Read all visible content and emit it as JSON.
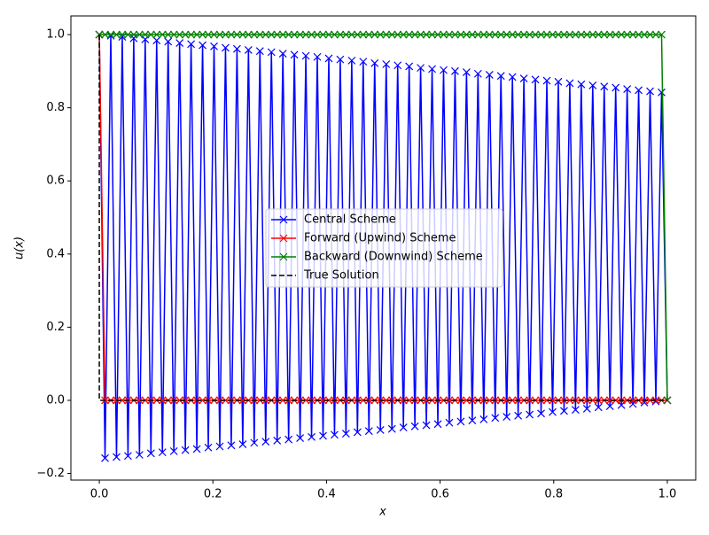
{
  "chart_data": {
    "type": "line",
    "xlabel": "x",
    "ylabel": "u(x)",
    "xlim": [
      -0.05,
      1.05
    ],
    "ylim": [
      -0.218,
      1.051
    ],
    "xticks": [
      {
        "value": 0,
        "label": "0.0"
      },
      0.2,
      0.4,
      0.6,
      0.8,
      {
        "value": 1,
        "label": "1.0"
      }
    ],
    "yticks": [
      {
        "value": -0.2,
        "label": "−0.2"
      },
      {
        "value": 0,
        "label": "0.0"
      },
      0.2,
      0.4,
      0.6,
      0.8,
      {
        "value": 1,
        "label": "1.0"
      }
    ],
    "legend": "center",
    "x": [
      0,
      0.0101,
      0.0202,
      0.0303,
      0.0404,
      0.0505,
      0.0606,
      0.0707,
      0.0808,
      0.0909,
      0.101,
      0.1111,
      0.1212,
      0.1313,
      0.1414,
      0.1515,
      0.1616,
      0.1717,
      0.1818,
      0.1919,
      0.202,
      0.2121,
      0.2222,
      0.2323,
      0.2424,
      0.2525,
      0.2626,
      0.2727,
      0.2828,
      0.2929,
      0.303,
      0.3131,
      0.3232,
      0.3333,
      0.3434,
      0.3535,
      0.3636,
      0.3737,
      0.3838,
      0.3939,
      0.404,
      0.4141,
      0.4242,
      0.4343,
      0.4444,
      0.4545,
      0.4646,
      0.4747,
      0.4848,
      0.4949,
      0.5051,
      0.5152,
      0.5253,
      0.5354,
      0.5455,
      0.5556,
      0.5657,
      0.5758,
      0.5859,
      0.596,
      0.6061,
      0.6162,
      0.6263,
      0.6364,
      0.6465,
      0.6566,
      0.6667,
      0.6768,
      0.6869,
      0.697,
      0.7071,
      0.7172,
      0.7273,
      0.7374,
      0.7475,
      0.7576,
      0.7677,
      0.7778,
      0.7879,
      0.798,
      0.8081,
      0.8182,
      0.8283,
      0.8384,
      0.8485,
      0.8586,
      0.8687,
      0.8788,
      0.8889,
      0.899,
      0.9091,
      0.9192,
      0.9293,
      0.9394,
      0.9495,
      0.9596,
      0.9697,
      0.9798,
      0.9899,
      1.0
    ],
    "series": [
      {
        "name": "Central Scheme",
        "color": "#0000ff",
        "marker": "x",
        "dash": false,
        "values": [
          1.0,
          -0.158,
          0.997,
          -0.155,
          0.994,
          -0.152,
          0.99,
          -0.149,
          0.987,
          -0.145,
          0.984,
          -0.142,
          0.981,
          -0.139,
          0.977,
          -0.136,
          0.974,
          -0.133,
          0.971,
          -0.129,
          0.968,
          -0.126,
          0.964,
          -0.123,
          0.961,
          -0.12,
          0.958,
          -0.116,
          0.955,
          -0.113,
          0.952,
          -0.11,
          0.948,
          -0.107,
          0.945,
          -0.103,
          0.942,
          -0.1,
          0.939,
          -0.097,
          0.935,
          -0.094,
          0.932,
          -0.091,
          0.929,
          -0.087,
          0.926,
          -0.084,
          0.922,
          -0.081,
          0.919,
          -0.078,
          0.916,
          -0.074,
          0.913,
          -0.071,
          0.909,
          -0.068,
          0.906,
          -0.065,
          0.903,
          -0.061,
          0.9,
          -0.058,
          0.897,
          -0.055,
          0.893,
          -0.052,
          0.89,
          -0.048,
          0.887,
          -0.045,
          0.884,
          -0.042,
          0.88,
          -0.039,
          0.877,
          -0.036,
          0.874,
          -0.032,
          0.871,
          -0.029,
          0.867,
          -0.026,
          0.864,
          -0.023,
          0.861,
          -0.019,
          0.858,
          -0.016,
          0.855,
          -0.013,
          0.851,
          -0.01,
          0.848,
          -0.006,
          0.845,
          -0.003,
          0.842,
          0
        ]
      },
      {
        "name": "Forward (Upwind) Scheme",
        "color": "#ff0000",
        "marker": "x",
        "dash": false,
        "values": [
          1,
          0,
          0,
          0,
          0,
          0,
          0,
          0,
          0,
          0,
          0,
          0,
          0,
          0,
          0,
          0,
          0,
          0,
          0,
          0,
          0,
          0,
          0,
          0,
          0,
          0,
          0,
          0,
          0,
          0,
          0,
          0,
          0,
          0,
          0,
          0,
          0,
          0,
          0,
          0,
          0,
          0,
          0,
          0,
          0,
          0,
          0,
          0,
          0,
          0,
          0,
          0,
          0,
          0,
          0,
          0,
          0,
          0,
          0,
          0,
          0,
          0,
          0,
          0,
          0,
          0,
          0,
          0,
          0,
          0,
          0,
          0,
          0,
          0,
          0,
          0,
          0,
          0,
          0,
          0,
          0,
          0,
          0,
          0,
          0,
          0,
          0,
          0,
          0,
          0,
          0,
          0,
          0,
          0,
          0,
          0,
          0,
          0,
          0,
          0
        ]
      },
      {
        "name": "Backward (Downwind) Scheme",
        "color": "#008000",
        "marker": "x",
        "dash": false,
        "values": [
          1,
          1,
          1,
          1,
          1,
          1,
          1,
          1,
          1,
          1,
          1,
          1,
          1,
          1,
          1,
          1,
          1,
          1,
          1,
          1,
          1,
          1,
          1,
          1,
          1,
          1,
          1,
          1,
          1,
          1,
          1,
          1,
          1,
          1,
          1,
          1,
          1,
          1,
          1,
          1,
          1,
          1,
          1,
          1,
          1,
          1,
          1,
          1,
          1,
          1,
          1,
          1,
          1,
          1,
          1,
          1,
          1,
          1,
          1,
          1,
          1,
          1,
          1,
          1,
          1,
          1,
          1,
          1,
          1,
          1,
          1,
          1,
          1,
          1,
          1,
          1,
          1,
          1,
          1,
          1,
          1,
          1,
          1,
          1,
          1,
          1,
          1,
          1,
          1,
          1,
          1,
          1,
          1,
          1,
          1,
          1,
          1,
          1,
          1,
          0
        ]
      },
      {
        "name": "True Solution",
        "color": "#000000",
        "marker": null,
        "dash": true,
        "x": [
          0,
          0,
          1
        ],
        "values": [
          1,
          0,
          0
        ]
      }
    ]
  }
}
